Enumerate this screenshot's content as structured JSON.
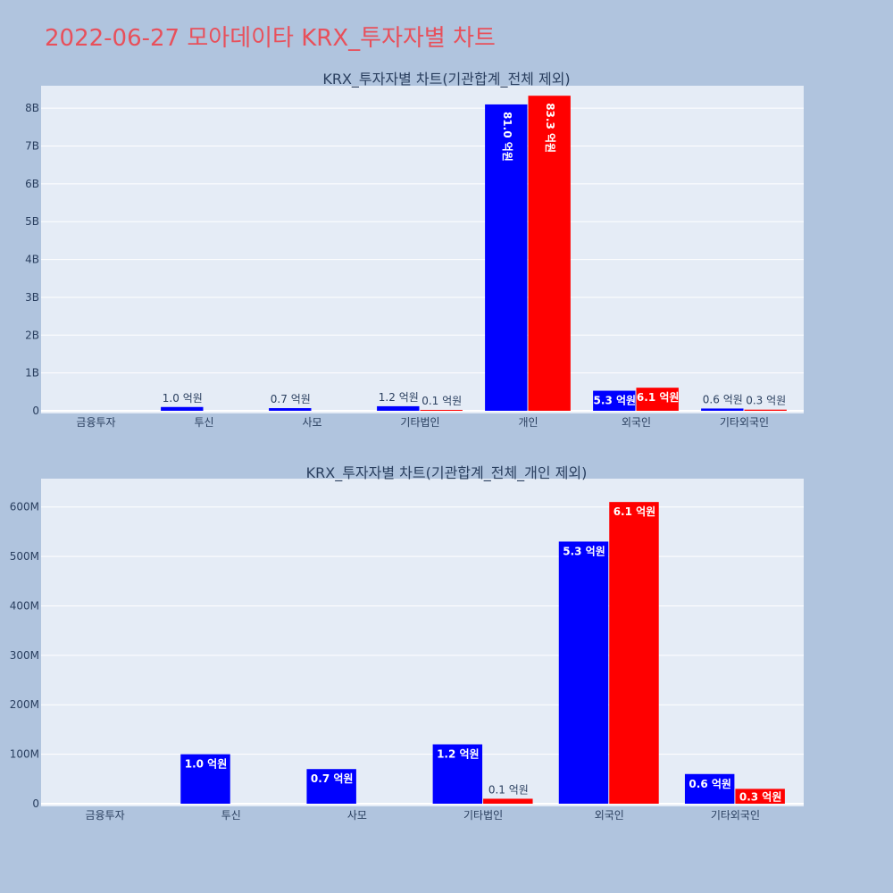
{
  "page": {
    "title": "2022-06-27 모아데이타 KRX_투자자별 차트"
  },
  "colors": {
    "background": "#b0c4de",
    "plot_bg": "#e5ecf6",
    "title": "#e8505b",
    "text": "#2a3f5f"
  },
  "chart_data": [
    {
      "type": "bar",
      "title": "KRX_투자자별 차트(기관합계_전체 제외)",
      "categories": [
        "금융투자",
        "투신",
        "사모",
        "기타법인",
        "개인",
        "외국인",
        "기타외국인"
      ],
      "ylim": [
        0,
        8500000000
      ],
      "yticks": [
        0,
        1000000000,
        2000000000,
        3000000000,
        4000000000,
        5000000000,
        6000000000,
        7000000000,
        8000000000
      ],
      "yticklabels": [
        "0",
        "1B",
        "2B",
        "3B",
        "4B",
        "5B",
        "6B",
        "7B",
        "8B"
      ],
      "grid": true,
      "series": [
        {
          "color": "#0000ff",
          "values": [
            null,
            100000000,
            70000000,
            120000000,
            8100000000,
            530000000,
            60000000
          ],
          "labels": [
            "",
            "1.0 억원",
            "0.7 억원",
            "1.2 억원",
            "81.0 억원",
            "5.3 억원",
            "0.6 억원"
          ]
        },
        {
          "color": "#ff0000",
          "values": [
            null,
            null,
            null,
            10000000,
            8330000000,
            610000000,
            30000000
          ],
          "labels": [
            "",
            "",
            "",
            "0.1 억원",
            "83.3 억원",
            "6.1 억원",
            "0.3 억원"
          ]
        }
      ]
    },
    {
      "type": "bar",
      "title": "KRX_투자자별 차트(기관합계_전체_개인 제외)",
      "categories": [
        "금융투자",
        "투신",
        "사모",
        "기타법인",
        "외국인",
        "기타외국인"
      ],
      "ylim": [
        0,
        650000000
      ],
      "yticks": [
        0,
        100000000,
        200000000,
        300000000,
        400000000,
        500000000,
        600000000
      ],
      "yticklabels": [
        "0",
        "100M",
        "200M",
        "300M",
        "400M",
        "500M",
        "600M"
      ],
      "grid": true,
      "series": [
        {
          "color": "#0000ff",
          "values": [
            null,
            100000000,
            70000000,
            120000000,
            530000000,
            60000000
          ],
          "labels": [
            "",
            "1.0 억원",
            "0.7 억원",
            "1.2 억원",
            "5.3 억원",
            "0.6 억원"
          ]
        },
        {
          "color": "#ff0000",
          "values": [
            null,
            null,
            null,
            10000000,
            610000000,
            30000000
          ],
          "labels": [
            "",
            "",
            "",
            "0.1 억원",
            "6.1 억원",
            "0.3 억원"
          ]
        }
      ]
    }
  ]
}
